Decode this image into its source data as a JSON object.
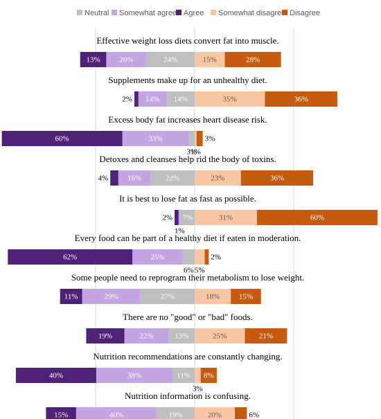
{
  "chart_data": {
    "type": "bar",
    "orientation": "horizontal-diverging",
    "stacked": true,
    "legend_position": "top",
    "grid": true,
    "x_unit": "%",
    "legend": [
      {
        "key": "neutral",
        "label": "Neutral",
        "color": "#bfbfbf"
      },
      {
        "key": "somewhat_agree",
        "label": "Somewhat agree",
        "color": "#c3a5e3"
      },
      {
        "key": "agree",
        "label": "Agree",
        "color": "#4f2277"
      },
      {
        "key": "somewhat_disagree",
        "label": "Somewhat disagree",
        "color": "#f8c6a2"
      },
      {
        "key": "disagree",
        "label": "Disagree",
        "color": "#c55a11"
      }
    ],
    "categories": [
      "Effective weight loss diets convert fat into muscle.",
      "Supplements make up for an unhealthy diet.",
      "Excess body fat increases heart disease risk.",
      "Detoxes and cleanses help rid the body of toxins.",
      "It is best to lose fat as fast as possible.",
      "Every food can be part of a healthy diet if eaten in moderation.",
      "Some people need to reprogram their metabolism to lose weight.",
      "There are no \"good\" or \"bad\" foods.",
      "Nutrition recommendations are constantly changing.",
      "Nutrition information is confusing."
    ],
    "series": [
      {
        "key": "agree",
        "values": [
          13,
          2,
          60,
          4,
          2,
          62,
          11,
          19,
          40,
          15
        ]
      },
      {
        "key": "somewhat_agree",
        "values": [
          20,
          14,
          33,
          16,
          1,
          25,
          29,
          22,
          38,
          40
        ]
      },
      {
        "key": "neutral",
        "values": [
          24,
          14,
          3,
          22,
          7,
          6,
          27,
          13,
          11,
          19
        ]
      },
      {
        "key": "somewhat_disagree",
        "values": [
          15,
          35,
          1,
          23,
          31,
          5,
          18,
          25,
          3,
          20
        ]
      },
      {
        "key": "disagree",
        "values": [
          28,
          36,
          3,
          36,
          60,
          2,
          15,
          21,
          8,
          6
        ]
      }
    ]
  }
}
